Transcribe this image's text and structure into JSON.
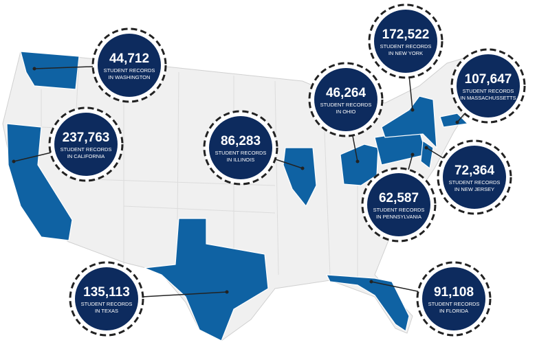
{
  "callouts": [
    {
      "value": "44,712",
      "line1": "STUDENT RECORDS",
      "line2": "IN WASHINGTON"
    },
    {
      "value": "237,763",
      "line1": "STUDENT RECORDS",
      "line2": "IN CALIFORNIA"
    },
    {
      "value": "86,283",
      "line1": "STUDENT RECORDS",
      "line2": "IN ILLINOIS"
    },
    {
      "value": "46,264",
      "line1": "STUDENT RECORDS",
      "line2": "IN OHIO"
    },
    {
      "value": "172,522",
      "line1": "STUDENT RECORDS",
      "line2": "IN NEW YORK"
    },
    {
      "value": "107,647",
      "line1": "STUDENT RECORDS",
      "line2": "IN MASSACHUSSETTS"
    },
    {
      "value": "72,364",
      "line1": "STUDENT RECORDS",
      "line2": "IN NEW JERSEY"
    },
    {
      "value": "62,587",
      "line1": "STUDENT RECORDS",
      "line2": "IN PENNSYLVANIA"
    },
    {
      "value": "135,113",
      "line1": "STUDENT RECORDS",
      "line2": "IN TEXAS"
    },
    {
      "value": "91,108",
      "line1": "STUDENT RECORDS",
      "line2": "IN FLORIDA"
    }
  ]
}
